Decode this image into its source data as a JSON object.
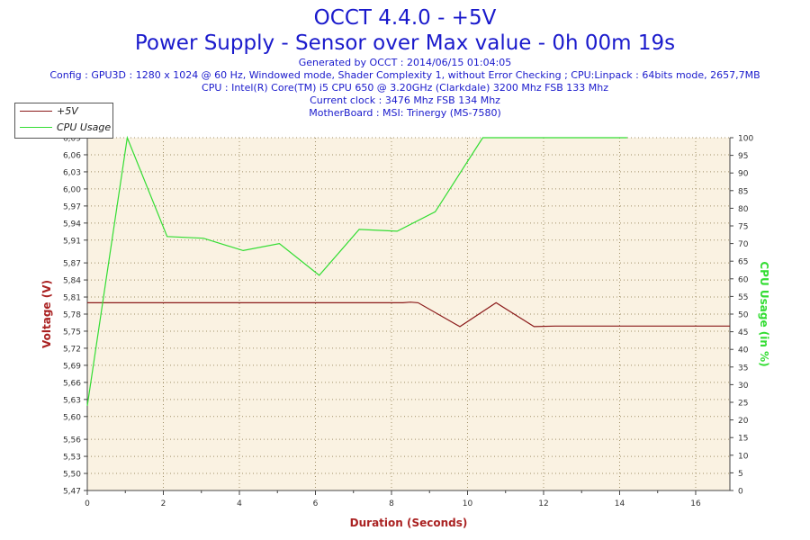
{
  "header": {
    "title": "OCCT 4.4.0 - +5V",
    "subtitle": "Power Supply - Sensor over Max value - 0h 00m 19s",
    "generated": "Generated by OCCT : 2014/06/15 01:04:05",
    "config": "Config : GPU3D : 1280 x 1024 @ 60 Hz, Windowed mode, Shader Complexity 1, without Error Checking ; CPU:Linpack : 64bits mode, 2657,7MB",
    "cpu": "CPU : Intel(R) Core(TM) i5 CPU 650 @ 3.20GHz (Clarkdale) 3200 Mhz FSB 133 Mhz",
    "clock": "Current clock : 3476 Mhz FSB 134 Mhz",
    "motherboard": "MotherBoard : MSI: Trinergy (MS-7580)"
  },
  "colors": {
    "title": "#1a1acc",
    "plot_background": "#faf2e2",
    "grid": "#a09068",
    "voltage_series": "#8b1a1a",
    "cpu_series": "#33dd33",
    "axis": "#444444"
  },
  "chart_data": {
    "type": "line",
    "title": "OCCT 4.4.0 - +5V",
    "xlabel": "Duration (Seconds)",
    "ylabel": "Voltage (V)",
    "y2label": "CPU Usage (in %)",
    "xlim": [
      0,
      16.9
    ],
    "ylim": [
      5.47,
      6.09
    ],
    "y2lim": [
      0,
      100
    ],
    "x_ticks": [
      0,
      2,
      4,
      6,
      8,
      10,
      12,
      14,
      16
    ],
    "y_ticks": [
      "5,47",
      "5,50",
      "5,53",
      "5,56",
      "5,60",
      "5,63",
      "5,66",
      "5,69",
      "5,72",
      "5,75",
      "5,78",
      "5,81",
      "5,84",
      "5,87",
      "5,91",
      "5,94",
      "5,97",
      "6,00",
      "6,03",
      "6,06",
      "6,09"
    ],
    "y2_ticks": [
      0,
      5,
      10,
      15,
      20,
      25,
      30,
      35,
      40,
      45,
      50,
      55,
      60,
      65,
      70,
      75,
      80,
      85,
      90,
      95,
      100
    ],
    "grid": true,
    "legend_position": "top-left",
    "series": [
      {
        "name": "+5V",
        "axis": "left",
        "x": [
          0,
          8.3,
          8.5,
          8.7,
          9.8,
          10.75,
          11.75,
          12.3,
          16.9
        ],
        "values": [
          5.8,
          5.8,
          5.801,
          5.8,
          5.758,
          5.8,
          5.758,
          5.759,
          5.759
        ]
      },
      {
        "name": "CPU Usage",
        "axis": "right",
        "x": [
          0,
          1.05,
          2.1,
          3.05,
          4.1,
          5.05,
          6.1,
          7.15,
          8.15,
          9.15,
          10.4,
          14.2
        ],
        "values": [
          24,
          100,
          72,
          71.5,
          68,
          70,
          61,
          74,
          73.5,
          79,
          100,
          100
        ]
      }
    ]
  }
}
